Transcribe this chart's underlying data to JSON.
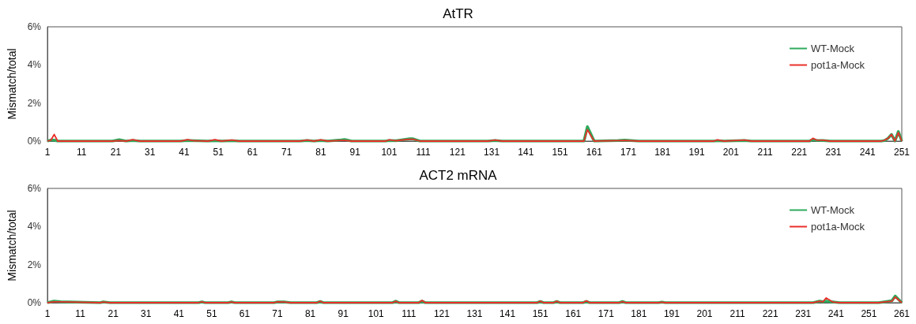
{
  "chart_data": [
    {
      "type": "line",
      "title": "AtTR",
      "ylabel": "Mismatch/total",
      "x": [
        1,
        2,
        3,
        4,
        5,
        20,
        22,
        24,
        26,
        28,
        40,
        42,
        44,
        48,
        50,
        52,
        55,
        57,
        75,
        77,
        79,
        81,
        83,
        87,
        88,
        90,
        100,
        101,
        103,
        107,
        108,
        110,
        125,
        130,
        132,
        134,
        158,
        159,
        161,
        168,
        170,
        174,
        196,
        197,
        199,
        205,
        207,
        209,
        224,
        225,
        226,
        228,
        230,
        245,
        246,
        247,
        248,
        249,
        250,
        251
      ],
      "series": [
        {
          "name": "WT-Mock",
          "color": "#2eaa5c",
          "values": [
            0,
            0.05,
            0.05,
            0,
            0,
            0,
            0.07,
            0,
            0.03,
            0,
            0,
            0.03,
            0.02,
            0,
            0.02,
            0,
            0.02,
            0,
            0,
            0.03,
            0,
            0.03,
            0,
            0.06,
            0.08,
            0,
            0,
            0.03,
            0.02,
            0.12,
            0.12,
            0,
            0,
            0,
            0.03,
            0,
            0,
            0.75,
            0,
            0.03,
            0.05,
            0,
            0,
            0.02,
            0,
            0.03,
            0,
            0,
            0,
            0.08,
            0.04,
            0.03,
            0,
            0,
            0.03,
            0.15,
            0.35,
            0,
            0.5,
            0
          ]
        },
        {
          "name": "pot1a-Mock",
          "color": "#e8302a",
          "values": [
            0,
            0.05,
            0.35,
            0,
            0,
            0,
            0.03,
            0,
            0.08,
            0,
            0,
            0.08,
            0.02,
            0,
            0.08,
            0,
            0.06,
            0,
            0,
            0.06,
            0,
            0.07,
            0,
            0.04,
            0.04,
            0,
            0,
            0.07,
            0.02,
            0.1,
            0.1,
            0,
            0,
            0,
            0.06,
            0,
            0,
            0.6,
            0,
            0.03,
            0.04,
            0,
            0,
            0.07,
            0,
            0.06,
            0,
            0,
            0,
            0.15,
            0.06,
            0.05,
            0,
            0,
            0.05,
            0.15,
            0.35,
            0,
            0.45,
            0
          ]
        }
      ],
      "xlim": [
        1,
        251
      ],
      "xticks": [
        1,
        11,
        21,
        31,
        41,
        51,
        61,
        71,
        81,
        91,
        101,
        111,
        121,
        131,
        141,
        151,
        161,
        171,
        181,
        191,
        201,
        211,
        221,
        231,
        241,
        251
      ],
      "ylim": [
        0,
        6
      ],
      "yticks": [
        {
          "value": 0,
          "label": "0%"
        },
        {
          "value": 2,
          "label": "2%"
        },
        {
          "value": 4,
          "label": "4%"
        },
        {
          "value": 6,
          "label": "6%"
        }
      ],
      "legend": "top right",
      "grid": false
    },
    {
      "type": "line",
      "title": "ACT2 mRNA",
      "ylabel": "Mismatch/total",
      "x": [
        1,
        3,
        5,
        17,
        18,
        20,
        22,
        24,
        47,
        48,
        49,
        56,
        57,
        58,
        70,
        71,
        73,
        75,
        83,
        84,
        85,
        106,
        107,
        108,
        114,
        115,
        116,
        150,
        151,
        152,
        155,
        156,
        157,
        164,
        165,
        166,
        175,
        176,
        177,
        187,
        188,
        189,
        234,
        236,
        237,
        238,
        240,
        242,
        254,
        256,
        258,
        259,
        261
      ],
      "series": [
        {
          "name": "WT-Mock",
          "color": "#2eaa5c",
          "values": [
            0,
            0.08,
            0.05,
            0,
            0.04,
            0,
            0,
            0,
            0,
            0.04,
            0,
            0,
            0.04,
            0,
            0,
            0.04,
            0.04,
            0,
            0,
            0.06,
            0,
            0,
            0.08,
            0,
            0,
            0.08,
            0,
            0,
            0.06,
            0,
            0,
            0.06,
            0,
            0,
            0.06,
            0,
            0,
            0.06,
            0,
            0,
            0.03,
            0,
            0,
            0.08,
            0.05,
            0.08,
            0.04,
            0,
            0,
            0.05,
            0.1,
            0.35,
            0
          ]
        },
        {
          "name": "pot1a-Mock",
          "color": "#e8302a",
          "values": [
            0,
            0.05,
            0.05,
            0,
            0.04,
            0,
            0,
            0,
            0,
            0.05,
            0,
            0,
            0.04,
            0,
            0,
            0.05,
            0.04,
            0,
            0,
            0.08,
            0,
            0,
            0.08,
            0,
            0,
            0.12,
            0,
            0,
            0.08,
            0,
            0,
            0.08,
            0,
            0,
            0.1,
            0,
            0,
            0.06,
            0,
            0,
            0.03,
            0,
            0,
            0.08,
            0.05,
            0.25,
            0.04,
            0,
            0,
            0.05,
            0.08,
            0.3,
            0
          ]
        }
      ],
      "xlim": [
        1,
        261
      ],
      "xticks": [
        1,
        11,
        21,
        31,
        41,
        51,
        61,
        71,
        81,
        91,
        101,
        111,
        121,
        131,
        141,
        151,
        161,
        171,
        181,
        191,
        201,
        211,
        221,
        231,
        241,
        251,
        261
      ],
      "ylim": [
        0,
        6
      ],
      "yticks": [
        {
          "value": 0,
          "label": "0%"
        },
        {
          "value": 2,
          "label": "2%"
        },
        {
          "value": 4,
          "label": "4%"
        },
        {
          "value": 6,
          "label": "6%"
        }
      ],
      "legend": "top right",
      "grid": false
    }
  ]
}
